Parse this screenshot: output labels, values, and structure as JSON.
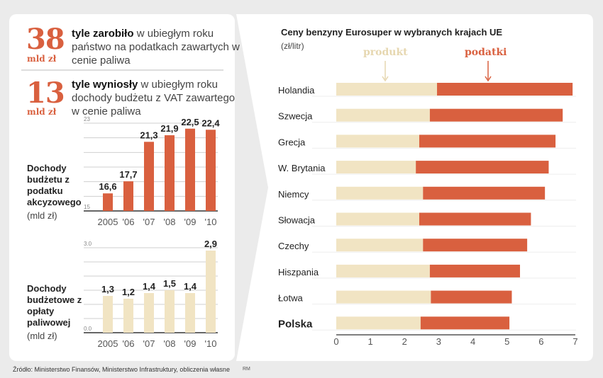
{
  "stats": [
    {
      "value": "38",
      "unit": "mld zł",
      "bold": "tyle zarobiło",
      "text": " w ubiegłym roku państwo na podatkach zawartych w cenie paliwa"
    },
    {
      "value": "13",
      "unit": "mld zł",
      "bold": "tyle wyniosły",
      "text": " w ubiegłym roku dochody budżetu z VAT zawartego w cenie paliwa"
    }
  ],
  "colors": {
    "tax": "#d9603f",
    "product": "#f1e4c3",
    "axis": "#333",
    "grid": "#cfcfcf"
  },
  "chart_data": [
    {
      "type": "bar",
      "title": "Dochody budżetu z podatku akcyzowego",
      "ylabel": "(mld zł)",
      "categories": [
        "2005",
        "'06",
        "'07",
        "'08",
        "'09",
        "'10"
      ],
      "values": [
        16.6,
        17.7,
        21.3,
        21.9,
        22.5,
        22.4
      ],
      "value_labels": [
        "16,6",
        "17,7",
        "21,3",
        "21,9",
        "22,5",
        "22,4"
      ],
      "ylim": [
        15,
        23
      ],
      "ytick_labels": [
        "15",
        "23"
      ],
      "grid": true,
      "color": "#d9603f"
    },
    {
      "type": "bar",
      "title": "Dochody budżetowe z opłaty paliwowej",
      "ylabel": "(mld zł)",
      "categories": [
        "2005",
        "'06",
        "'07",
        "'08",
        "'09",
        "'10"
      ],
      "values": [
        1.3,
        1.2,
        1.4,
        1.5,
        1.4,
        2.9
      ],
      "value_labels": [
        "1,3",
        "1,2",
        "1,4",
        "1,5",
        "1,4",
        "2,9"
      ],
      "ylim": [
        0,
        3
      ],
      "ytick_labels": [
        "0.0",
        "3.0"
      ],
      "grid": true,
      "color": "#f1e4c3"
    },
    {
      "type": "bar",
      "orientation": "horizontal",
      "stacked": true,
      "title": "Ceny benzyny Eurosuper w wybranych krajach UE",
      "unit": "(zł/litr)",
      "categories": [
        "Holandia",
        "Szwecja",
        "Grecja",
        "W. Brytania",
        "Niemcy",
        "Słowacja",
        "Czechy",
        "Hiszpania",
        "Łotwa",
        "Polska"
      ],
      "highlight": "Polska",
      "series": [
        {
          "name": "produkt",
          "values": [
            2.95,
            2.74,
            2.43,
            2.33,
            2.54,
            2.43,
            2.54,
            2.74,
            2.77,
            2.47
          ]
        },
        {
          "name": "podatki",
          "values": [
            3.97,
            3.89,
            3.99,
            3.89,
            3.57,
            3.27,
            3.05,
            2.64,
            2.37,
            2.6
          ]
        }
      ],
      "xlim": [
        0,
        7
      ],
      "xticks": [
        "0",
        "1",
        "2",
        "3",
        "4",
        "5",
        "6",
        "7"
      ]
    }
  ],
  "source": "Źródło: Ministerstwo Finansów, Ministerstwo Infrastruktury, obliczenia własne",
  "credit": "RM"
}
